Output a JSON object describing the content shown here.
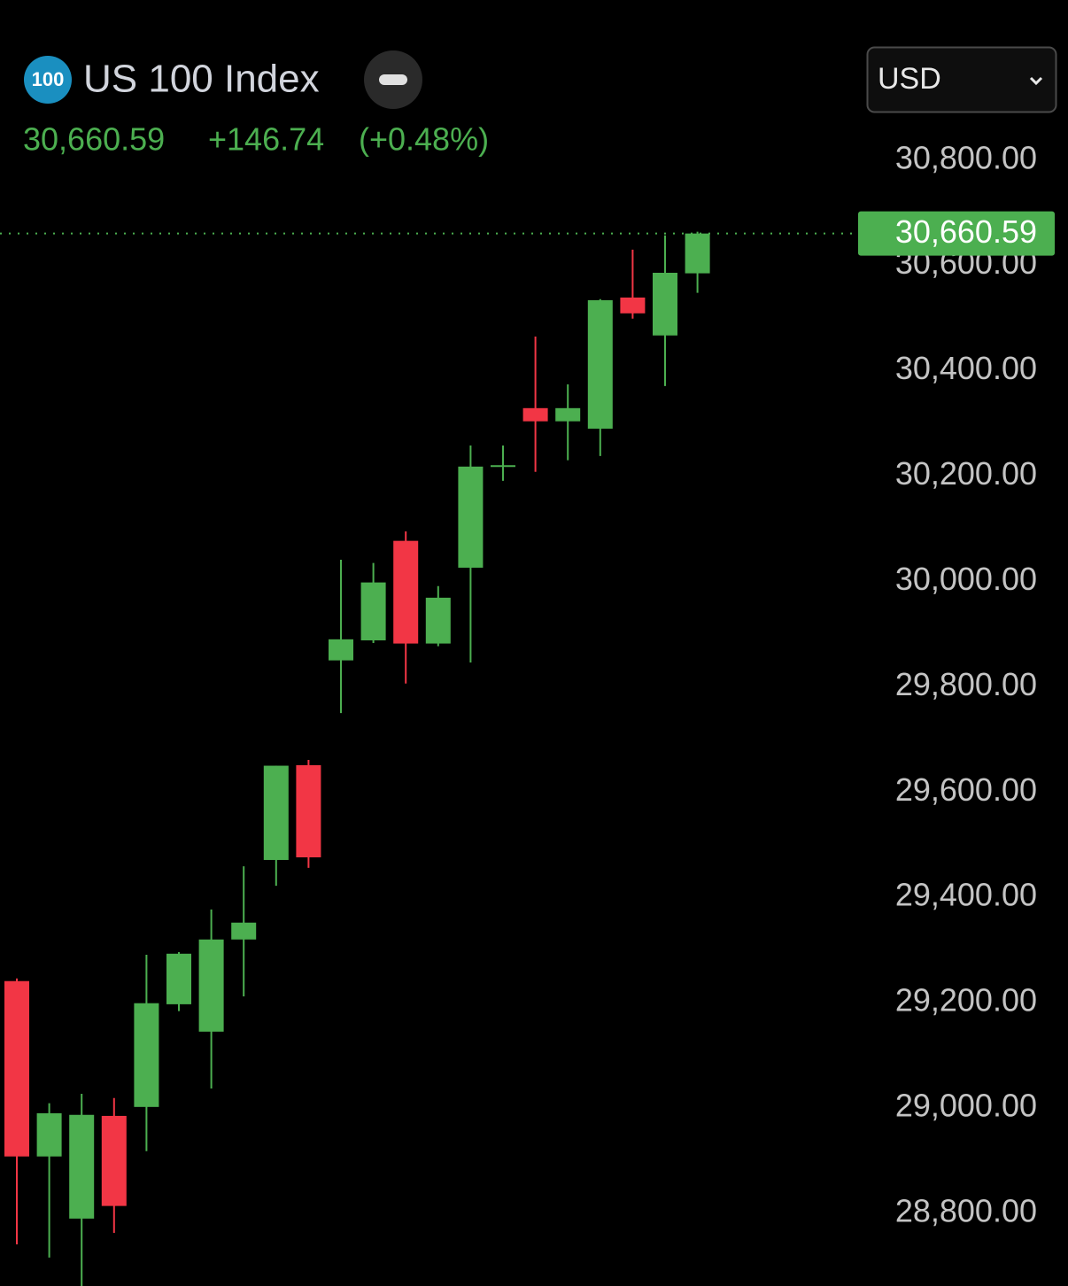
{
  "header": {
    "logo": "100",
    "title": "US 100 Index",
    "price": "30,660.59",
    "change": "+146.74",
    "change_percent": "(+0.48%)",
    "currency": "USD"
  },
  "chart_data": {
    "type": "candlestick",
    "x": [
      null,
      null,
      null,
      null,
      null,
      null,
      null,
      null,
      null,
      null,
      null,
      null,
      null,
      null,
      null,
      null,
      null,
      null,
      null,
      null,
      null,
      null
    ],
    "open": [
      29241,
      28908,
      28790,
      28985,
      29002,
      29197,
      29145,
      29320,
      29471,
      29651,
      29850,
      29888,
      30077,
      29882,
      30026,
      30218,
      30329,
      30304,
      30290,
      30539,
      30467,
      30585
    ],
    "high": [
      29246,
      29009,
      29027,
      29019,
      29291,
      29296,
      29377,
      29459,
      29650,
      29661,
      30041,
      30035,
      30095,
      29991,
      30258,
      30258,
      30465,
      30374,
      30536,
      30630,
      30657,
      30664
    ],
    "low": [
      28741,
      28716,
      28662,
      28763,
      28918,
      29184,
      29037,
      29212,
      29422,
      29456,
      29750,
      29883,
      29806,
      29877,
      29846,
      30191,
      30208,
      30230,
      30238,
      30499,
      30371,
      30548
    ],
    "close": [
      28908,
      28990,
      28987,
      28814,
      29199,
      29293,
      29320,
      29352,
      29650,
      29476,
      29890,
      29998,
      29882,
      29969,
      30218,
      30220,
      30304,
      30329,
      30534,
      30509,
      30586,
      30660.59
    ],
    "up_color": "#4caf50",
    "down_color": "#f23645",
    "ylim": [
      28662,
      31104
    ],
    "yticks": [
      {
        "value": 28800,
        "label": "28,800.00"
      },
      {
        "value": 29000,
        "label": "29,000.00"
      },
      {
        "value": 29200,
        "label": "29,200.00"
      },
      {
        "value": 29400,
        "label": "29,400.00"
      },
      {
        "value": 29600,
        "label": "29,600.00"
      },
      {
        "value": 29800,
        "label": "29,800.00"
      },
      {
        "value": 30000,
        "label": "30,000.00"
      },
      {
        "value": 30200,
        "label": "30,200.00"
      },
      {
        "value": 30400,
        "label": "30,400.00"
      },
      {
        "value": 30600,
        "label": "30,600.00"
      },
      {
        "value": 30800,
        "label": "30,800.00"
      }
    ]
  }
}
